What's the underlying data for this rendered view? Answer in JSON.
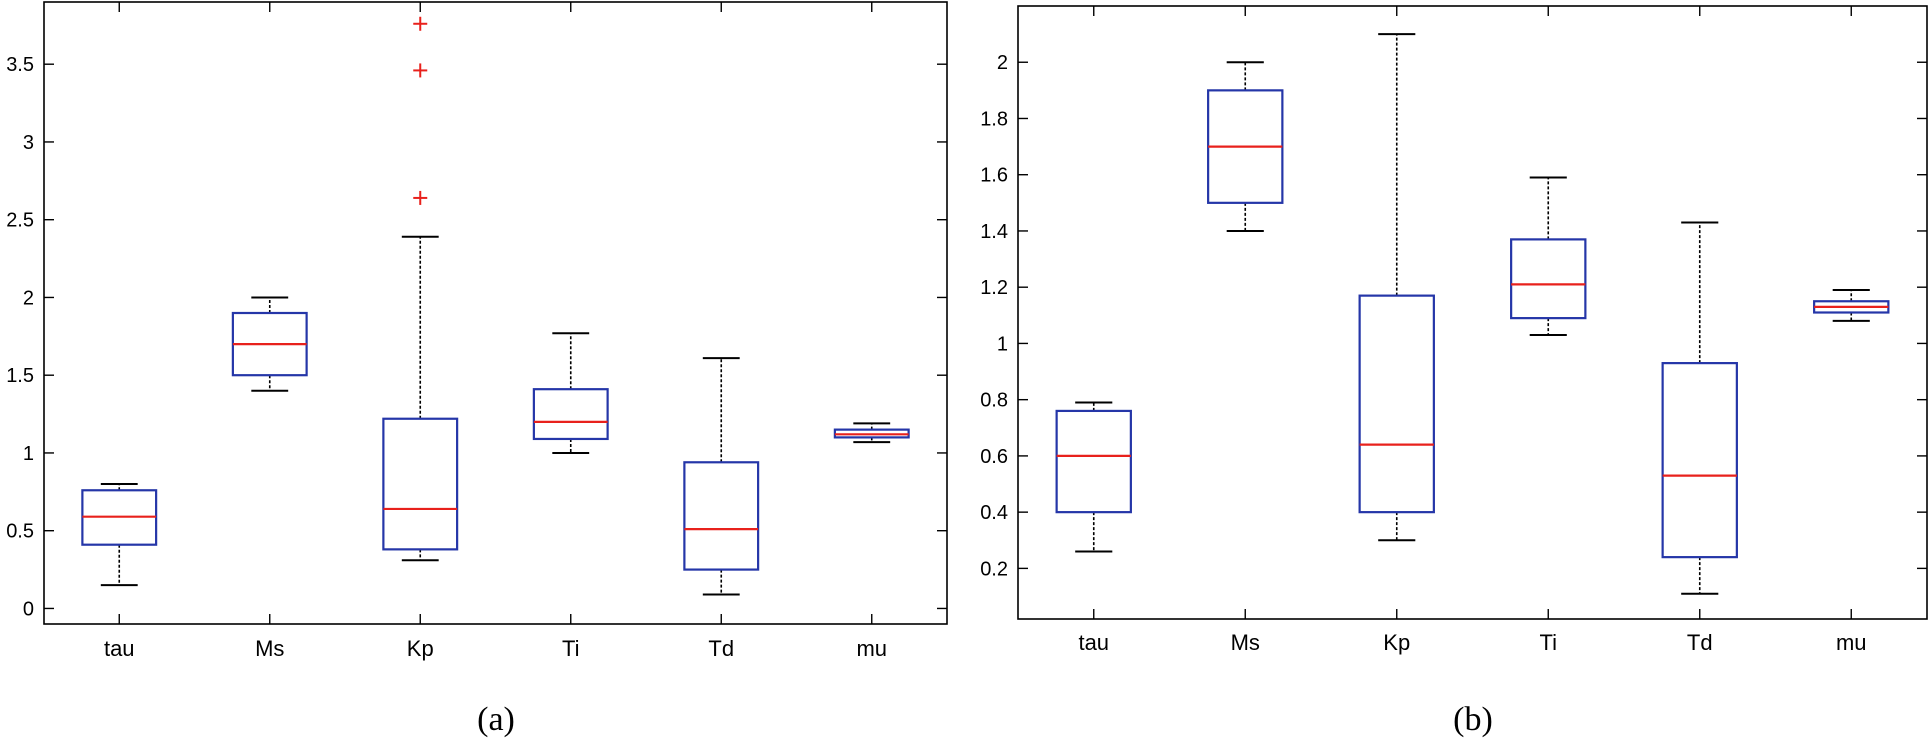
{
  "chart_data": [
    {
      "type": "boxplot",
      "caption": "(a)",
      "categories": [
        "tau",
        "Ms",
        "Kp",
        "Ti",
        "Td",
        "mu"
      ],
      "ylim": [
        -0.1,
        3.9
      ],
      "yticks": [
        0,
        0.5,
        1,
        1.5,
        2,
        2.5,
        3,
        3.5
      ],
      "ytick_labels": [
        "0",
        "0.5",
        "1",
        "1.5",
        "2",
        "2.5",
        "3",
        "3.5"
      ],
      "boxes": [
        {
          "name": "tau",
          "low": 0.15,
          "q1": 0.41,
          "median": 0.59,
          "q3": 0.76,
          "high": 0.8,
          "outliers": []
        },
        {
          "name": "Ms",
          "low": 1.4,
          "q1": 1.5,
          "median": 1.7,
          "q3": 1.9,
          "high": 2.0,
          "outliers": []
        },
        {
          "name": "Kp",
          "low": 0.31,
          "q1": 0.38,
          "median": 0.64,
          "q3": 1.22,
          "high": 2.39,
          "outliers": [
            2.64,
            3.46,
            3.76
          ]
        },
        {
          "name": "Ti",
          "low": 1.0,
          "q1": 1.09,
          "median": 1.2,
          "q3": 1.41,
          "high": 1.77,
          "outliers": []
        },
        {
          "name": "Td",
          "low": 0.09,
          "q1": 0.25,
          "median": 0.51,
          "q3": 0.94,
          "high": 1.61,
          "outliers": []
        },
        {
          "name": "mu",
          "low": 1.07,
          "q1": 1.1,
          "median": 1.12,
          "q3": 1.15,
          "high": 1.19,
          "outliers": []
        }
      ]
    },
    {
      "type": "boxplot",
      "caption": "(b)",
      "categories": [
        "tau",
        "Ms",
        "Kp",
        "Ti",
        "Td",
        "mu"
      ],
      "ylim": [
        0.02,
        2.2
      ],
      "yticks": [
        0.2,
        0.4,
        0.6,
        0.8,
        1,
        1.2,
        1.4,
        1.6,
        1.8,
        2
      ],
      "ytick_labels": [
        "0.2",
        "0.4",
        "0.6",
        "0.8",
        "1",
        "1.2",
        "1.4",
        "1.6",
        "1.8",
        "2"
      ],
      "boxes": [
        {
          "name": "tau",
          "low": 0.26,
          "q1": 0.4,
          "median": 0.6,
          "q3": 0.76,
          "high": 0.79,
          "outliers": []
        },
        {
          "name": "Ms",
          "low": 1.4,
          "q1": 1.5,
          "median": 1.7,
          "q3": 1.9,
          "high": 2.0,
          "outliers": []
        },
        {
          "name": "Kp",
          "low": 0.3,
          "q1": 0.4,
          "median": 0.64,
          "q3": 1.17,
          "high": 2.1,
          "outliers": []
        },
        {
          "name": "Ti",
          "low": 1.03,
          "q1": 1.09,
          "median": 1.21,
          "q3": 1.37,
          "high": 1.59,
          "outliers": []
        },
        {
          "name": "Td",
          "low": 0.11,
          "q1": 0.24,
          "median": 0.53,
          "q3": 0.93,
          "high": 1.43,
          "outliers": []
        },
        {
          "name": "mu",
          "low": 1.08,
          "q1": 1.11,
          "median": 1.13,
          "q3": 1.15,
          "high": 1.19,
          "outliers": []
        }
      ]
    }
  ],
  "colors": {
    "box": "#2536a8",
    "median": "#e8211c",
    "whisker": "#000000",
    "outlier": "#e8211c",
    "axis": "#000000"
  }
}
